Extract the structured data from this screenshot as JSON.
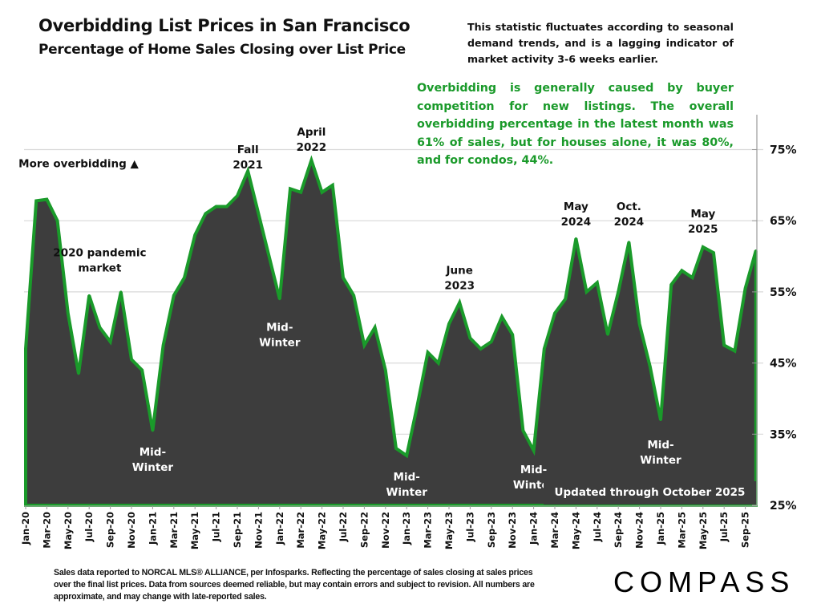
{
  "header": {
    "title": "Overbidding List Prices in San Francisco",
    "subtitle": "Percentage of Home Sales Closing over List Price"
  },
  "notes": {
    "seasonal": "This statistic fluctuates according to seasonal demand trends, and is a lagging indicator of market activity 3-6 weeks earlier.",
    "summary": "Overbidding is generally caused by buyer competition for new listings. The overall overbidding percentage in the latest month was 61% of sales, but for houses alone, it was 80%, and for condos, 44%."
  },
  "updated_label": "Updated through October 2025",
  "footer": {
    "disclaimer": "Sales data reported to NORCAL MLS® ALLIANCE, per Infosparks. Reflecting the percentage of sales closing at sales prices over the final list prices. Data from sources deemed reliable, but may contain errors and subject to revision. All numbers are approximate, and may change with late-reported sales.",
    "logo": "COMPASS"
  },
  "colors": {
    "area_fill": "#3d3d3d",
    "line": "#1a9a2a",
    "note_green": "#1a9a2a",
    "grid": "#d9d9d9"
  },
  "chart_data": {
    "type": "area",
    "title": "Overbidding List Prices in San Francisco",
    "subtitle": "Percentage of Home Sales Closing over List Price",
    "xlabel": "",
    "ylabel": "",
    "ylim": [
      25,
      80
    ],
    "yticks": [
      "25%",
      "35%",
      "45%",
      "55%",
      "65%",
      "75%"
    ],
    "ytick_values": [
      25,
      35,
      45,
      55,
      65,
      75
    ],
    "grid": true,
    "y_axis_side": "right",
    "x": [
      "Jan-20",
      "Feb-20",
      "Mar-20",
      "Apr-20",
      "May-20",
      "Jun-20",
      "Jul-20",
      "Aug-20",
      "Sep-20",
      "Oct-20",
      "Nov-20",
      "Dec-20",
      "Jan-21",
      "Feb-21",
      "Mar-21",
      "Apr-21",
      "May-21",
      "Jun-21",
      "Jul-21",
      "Aug-21",
      "Sep-21",
      "Oct-21",
      "Nov-21",
      "Dec-21",
      "Jan-22",
      "Feb-22",
      "Mar-22",
      "Apr-22",
      "May-22",
      "Jun-22",
      "Jul-22",
      "Aug-22",
      "Sep-22",
      "Oct-22",
      "Nov-22",
      "Dec-22",
      "Jan-23",
      "Feb-23",
      "Mar-23",
      "Apr-23",
      "May-23",
      "Jun-23",
      "Jul-23",
      "Aug-23",
      "Sep-23",
      "Oct-23",
      "Nov-23",
      "Dec-23",
      "Jan-24",
      "Feb-24",
      "Mar-24",
      "Apr-24",
      "May-24",
      "Jun-24",
      "Jul-24",
      "Aug-24",
      "Sep-24",
      "Oct-24",
      "Nov-24",
      "Dec-24",
      "Jan-25",
      "Feb-25",
      "Mar-25",
      "Apr-25",
      "May-25",
      "Jun-25",
      "Jul-25",
      "Aug-25",
      "Sep-25",
      "Oct-25"
    ],
    "xtick_labels": [
      "Jan-20",
      "Mar-20",
      "May-20",
      "Jul-20",
      "Sep-20",
      "Nov-20",
      "Jan-21",
      "Mar-21",
      "May-21",
      "Jul-21",
      "Sep-21",
      "Nov-21",
      "Jan-22",
      "Mar-22",
      "May-22",
      "Jul-22",
      "Sep-22",
      "Nov-22",
      "Jan-23",
      "Mar-23",
      "May-23",
      "Jul-23",
      "Sep-23",
      "Nov-23",
      "Jan-24",
      "Mar-24",
      "May-24",
      "Jul-24",
      "Sep-24",
      "Nov-24",
      "Jan-25",
      "Mar-25",
      "May-25",
      "Jul-25",
      "Sep-25"
    ],
    "series": [
      {
        "name": "% of sales over list price",
        "values": [
          47,
          67.8,
          68,
          65,
          52,
          43.5,
          54.5,
          50,
          48,
          55,
          45.5,
          44,
          35.5,
          47.5,
          54.5,
          57,
          63,
          66,
          67,
          67,
          68.5,
          72,
          66,
          60,
          54,
          69.5,
          69,
          73.5,
          69,
          70,
          57,
          54.5,
          47.5,
          50,
          44,
          33,
          32,
          39,
          46.5,
          45,
          50.5,
          53.5,
          48.5,
          47,
          48,
          51.5,
          49,
          35.5,
          32.7,
          47,
          52,
          54,
          62.5,
          55,
          56.3,
          49,
          55,
          62,
          50.5,
          44.5,
          37,
          56,
          58,
          57,
          61.3,
          60.5,
          47.5,
          46.7,
          55.5,
          60.8
        ]
      }
    ],
    "annotations": [
      {
        "text": "More overbidding ▲",
        "x": "Jun-20",
        "y": 72.5
      },
      {
        "text": "2020 pandemic market",
        "x": "Aug-20",
        "y": 60
      },
      {
        "text": "Mid-Winter",
        "x": "Jan-21",
        "y": 32
      },
      {
        "text": "Fall 2021",
        "x": "Oct-21",
        "y": 74.5
      },
      {
        "text": "April 2022",
        "x": "Apr-22",
        "y": 77
      },
      {
        "text": "Mid-Winter",
        "x": "Jan-22",
        "y": 49.5
      },
      {
        "text": "Mid-Winter",
        "x": "Jan-23",
        "y": 28.5
      },
      {
        "text": "June 2023",
        "x": "Jun-23",
        "y": 57.5
      },
      {
        "text": "Mid-Winter",
        "x": "Jan-24",
        "y": 29.5
      },
      {
        "text": "May 2024",
        "x": "May-24",
        "y": 66.5
      },
      {
        "text": "Oct. 2024",
        "x": "Oct-24",
        "y": 66.5
      },
      {
        "text": "Mid-Winter",
        "x": "Jan-25",
        "y": 33
      },
      {
        "text": "May 2025",
        "x": "May-25",
        "y": 65.5
      }
    ]
  }
}
